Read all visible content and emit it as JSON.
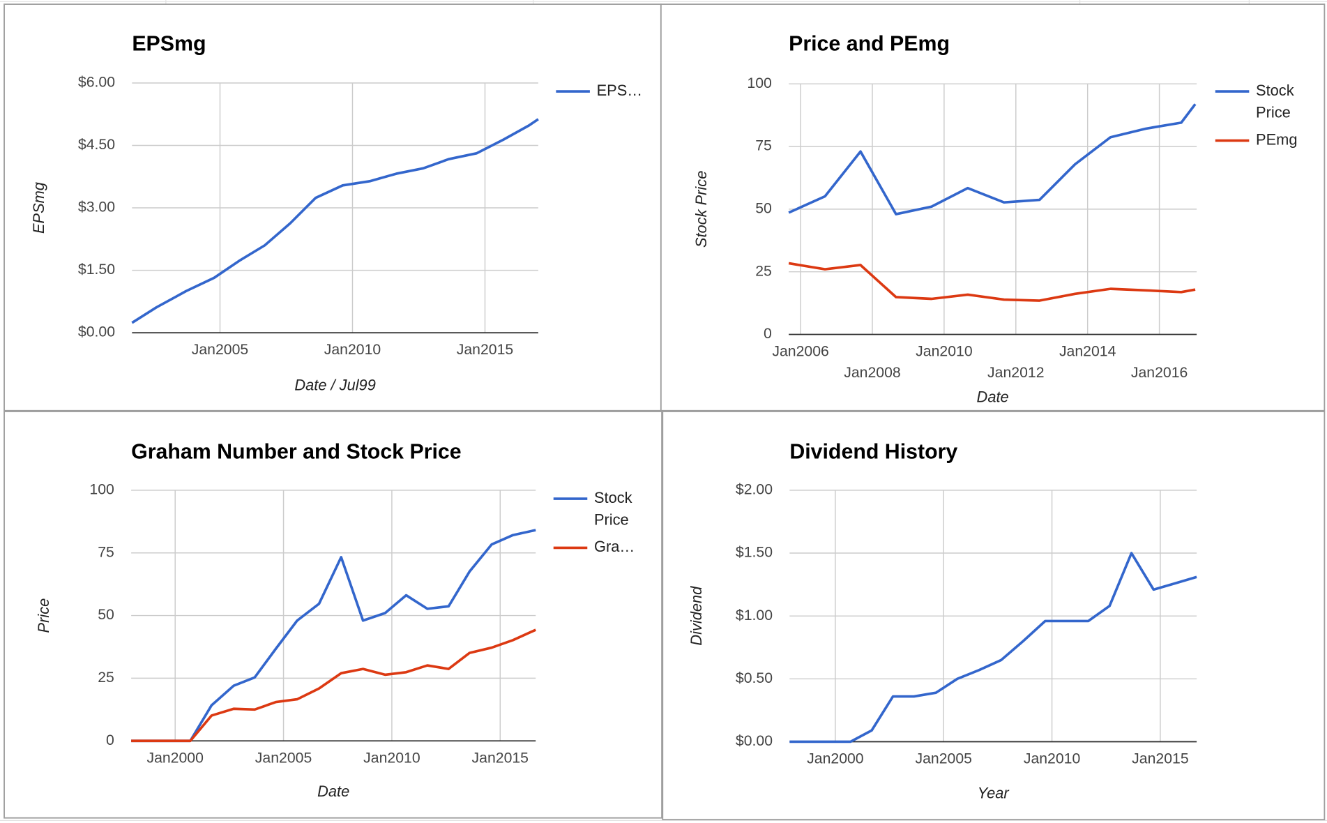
{
  "chart_data": [
    {
      "type": "line",
      "title": "EPSmg",
      "y_label": "EPSmg",
      "x_label": "Date / Jul99",
      "x": [
        2001.68,
        2002.6,
        2003.72,
        2004.78,
        2005.73,
        2006.69,
        2007.65,
        2008.61,
        2009.63,
        2010.65,
        2011.65,
        2012.67,
        2013.63,
        2014.68,
        2015.7,
        2016.66,
        2017.01
      ],
      "series": [
        {
          "name": "EPS…",
          "color": "#3366cc",
          "values": [
            0.24,
            0.61,
            1.0,
            1.32,
            1.73,
            2.1,
            2.63,
            3.24,
            3.54,
            3.64,
            3.82,
            3.95,
            4.17,
            4.31,
            4.64,
            4.98,
            5.13
          ]
        }
      ],
      "xlim": [
        2001.68,
        2017.01
      ],
      "xticks": [
        {
          "value": 2005,
          "label": "Jan2005"
        },
        {
          "value": 2010,
          "label": "Jan2010"
        },
        {
          "value": 2015,
          "label": "Jan2015"
        }
      ],
      "ylim": [
        0,
        6
      ],
      "yticks": [
        {
          "value": 0,
          "label": "$0.00"
        },
        {
          "value": 1.5,
          "label": "$1.50"
        },
        {
          "value": 3,
          "label": "$3.00"
        },
        {
          "value": 4.5,
          "label": "$4.50"
        },
        {
          "value": 6,
          "label": "$6.00"
        }
      ],
      "grid": true,
      "legend": "right"
    },
    {
      "type": "line",
      "title": "Price and PEmg",
      "y_label": "Stock Price",
      "x_label": "Date",
      "x": [
        2005.67,
        2006.68,
        2007.67,
        2008.66,
        2009.65,
        2010.66,
        2011.67,
        2012.66,
        2013.65,
        2014.64,
        2015.62,
        2016.61,
        2017.0
      ],
      "series": [
        {
          "name": "Stock Price",
          "color": "#3366cc",
          "values": [
            48.6,
            55.1,
            73.0,
            48.0,
            51.0,
            58.4,
            52.7,
            53.7,
            67.9,
            78.7,
            82.1,
            84.5,
            91.9
          ]
        },
        {
          "name": "PEmg",
          "color": "#dc3912",
          "values": [
            28.4,
            26.0,
            27.7,
            14.9,
            14.2,
            15.9,
            13.9,
            13.5,
            16.2,
            18.2,
            17.6,
            16.9,
            17.9
          ]
        }
      ],
      "xlim": [
        2005.67,
        2017.04
      ],
      "xticks": [
        {
          "value": 2006,
          "label": "Jan2006"
        },
        {
          "value": 2008,
          "label": "Jan2008"
        },
        {
          "value": 2010,
          "label": "Jan2010"
        },
        {
          "value": 2012,
          "label": "Jan2012"
        },
        {
          "value": 2014,
          "label": "Jan2014"
        },
        {
          "value": 2016,
          "label": "Jan2016"
        }
      ],
      "ylim": [
        0,
        100
      ],
      "yticks": [
        0,
        25,
        50,
        75,
        100
      ],
      "grid": true,
      "legend": "right"
    },
    {
      "type": "line",
      "title": "Graham Number and Stock Price",
      "y_label": "Price",
      "x_label": "Date",
      "x": [
        1997.97,
        1998.98,
        2000.0,
        2000.7,
        2001.68,
        2002.7,
        2003.67,
        2004.65,
        2005.63,
        2006.64,
        2007.66,
        2008.67,
        2009.69,
        2010.66,
        2011.64,
        2012.62,
        2013.59,
        2014.61,
        2015.59,
        2016.64
      ],
      "series": [
        {
          "name": "Stock Price",
          "color": "#3366cc",
          "values": [
            0,
            0,
            0,
            0,
            14.2,
            22.0,
            25.3,
            36.8,
            48.0,
            54.7,
            73.3,
            48.0,
            51.0,
            58.1,
            52.7,
            53.7,
            67.6,
            78.4,
            82.1,
            84.1
          ]
        },
        {
          "name": "Gra…",
          "color": "#dc3912",
          "values": [
            0,
            0,
            0,
            0,
            10.1,
            12.8,
            12.5,
            15.5,
            16.6,
            20.9,
            27.0,
            28.7,
            26.4,
            27.4,
            30.1,
            28.7,
            35.1,
            37.2,
            40.2,
            44.3
          ]
        }
      ],
      "xlim": [
        1997.97,
        2016.64
      ],
      "xticks": [
        {
          "value": 2000,
          "label": "Jan2000"
        },
        {
          "value": 2005,
          "label": "Jan2005"
        },
        {
          "value": 2010,
          "label": "Jan2010"
        },
        {
          "value": 2015,
          "label": "Jan2015"
        }
      ],
      "ylim": [
        0,
        100
      ],
      "yticks": [
        0,
        25,
        50,
        75,
        100
      ],
      "grid": true,
      "legend": "right"
    },
    {
      "type": "line",
      "title": "Dividend History",
      "y_label": "Dividend",
      "x_label": "Year",
      "x": [
        1997.89,
        1998.95,
        1999.92,
        2000.7,
        2001.68,
        2002.66,
        2003.63,
        2004.65,
        2005.63,
        2006.64,
        2007.66,
        2008.67,
        2009.69,
        2010.66,
        2011.68,
        2012.66,
        2013.67,
        2014.69,
        2015.7,
        2016.68
      ],
      "series": [
        {
          "name": "Dividend",
          "color": "#3366cc",
          "values": [
            0,
            0,
            0,
            0,
            0.09,
            0.36,
            0.36,
            0.39,
            0.5,
            0.57,
            0.65,
            0.8,
            0.96,
            0.96,
            0.96,
            1.08,
            1.5,
            1.21,
            1.26,
            1.31
          ]
        }
      ],
      "xlim": [
        1997.89,
        2016.68
      ],
      "xticks": [
        {
          "value": 2000,
          "label": "Jan2000"
        },
        {
          "value": 2005,
          "label": "Jan2005"
        },
        {
          "value": 2010,
          "label": "Jan2010"
        },
        {
          "value": 2015,
          "label": "Jan2015"
        }
      ],
      "ylim": [
        0,
        2
      ],
      "yticks": [
        {
          "value": 0,
          "label": "$0.00"
        },
        {
          "value": 0.5,
          "label": "$0.50"
        },
        {
          "value": 1,
          "label": "$1.00"
        },
        {
          "value": 1.5,
          "label": "$1.50"
        },
        {
          "value": 2,
          "label": "$2.00"
        }
      ],
      "grid": true,
      "legend": "none"
    }
  ]
}
